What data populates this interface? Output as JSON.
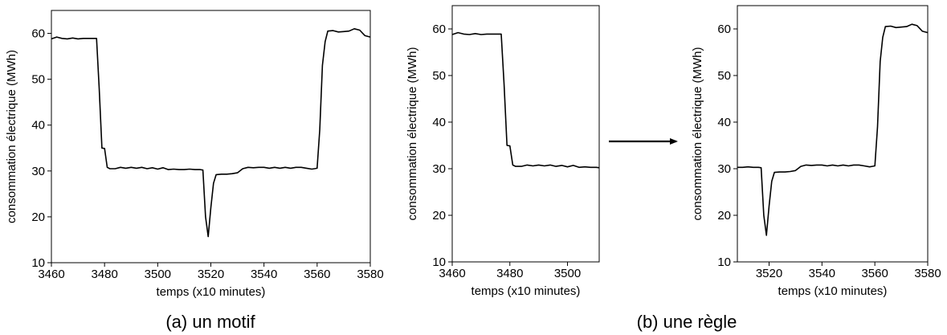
{
  "captions": {
    "a": "(a) un motif",
    "b": "(b) une règle"
  },
  "arrow": {
    "name": "right-arrow-icon"
  },
  "chart_data": [
    {
      "type": "line",
      "xlabel": "temps (x10 minutes)",
      "ylabel": "consommation électrique (MWh)",
      "xlim": [
        3460,
        3580
      ],
      "ylim": [
        10,
        65
      ],
      "xticks": [
        "3460",
        "3480",
        "3500",
        "3520",
        "3540",
        "3560",
        "3580"
      ],
      "yticks": [
        "10",
        "20",
        "30",
        "40",
        "50",
        "60"
      ],
      "grid": false,
      "x": [
        3460,
        3462,
        3464,
        3466,
        3468,
        3470,
        3472,
        3474,
        3476,
        3477,
        3478,
        3479,
        3480,
        3481,
        3482,
        3484,
        3486,
        3488,
        3490,
        3492,
        3494,
        3496,
        3498,
        3500,
        3502,
        3504,
        3506,
        3508,
        3510,
        3512,
        3514,
        3516,
        3517,
        3518,
        3519,
        3520,
        3521,
        3522,
        3524,
        3526,
        3528,
        3530,
        3532,
        3534,
        3536,
        3538,
        3540,
        3542,
        3544,
        3546,
        3548,
        3550,
        3552,
        3554,
        3556,
        3558,
        3559,
        3560,
        3561,
        3562,
        3563,
        3564,
        3566,
        3568,
        3570,
        3572,
        3574,
        3576,
        3578,
        3580
      ],
      "y": [
        58.8,
        59.2,
        58.9,
        58.8,
        59.0,
        58.8,
        58.9,
        58.9,
        58.9,
        58.9,
        48,
        35,
        34.9,
        30.8,
        30.5,
        30.5,
        30.8,
        30.6,
        30.8,
        30.6,
        30.8,
        30.5,
        30.7,
        30.4,
        30.7,
        30.3,
        30.4,
        30.3,
        30.3,
        30.4,
        30.3,
        30.3,
        30.2,
        20,
        15.7,
        22,
        27.3,
        29.2,
        29.3,
        29.3,
        29.4,
        29.6,
        30.5,
        30.8,
        30.7,
        30.8,
        30.8,
        30.6,
        30.8,
        30.6,
        30.8,
        30.6,
        30.8,
        30.8,
        30.6,
        30.4,
        30.5,
        30.6,
        39,
        53,
        58.2,
        60.5,
        60.6,
        60.3,
        60.4,
        60.5,
        61.0,
        60.7,
        59.5,
        59.2
      ]
    },
    {
      "type": "line",
      "xlabel": "temps (x10 minutes)",
      "ylabel": "consommation électrique (MWh)",
      "xlim": [
        3460,
        3511
      ],
      "ylim": [
        10,
        65
      ],
      "xticks": [
        "3460",
        "3480",
        "3500"
      ],
      "yticks": [
        "10",
        "20",
        "30",
        "40",
        "50",
        "60"
      ],
      "grid": false,
      "x": [
        3460,
        3462,
        3464,
        3466,
        3468,
        3470,
        3472,
        3474,
        3476,
        3477,
        3478,
        3479,
        3480,
        3481,
        3482,
        3484,
        3486,
        3488,
        3490,
        3492,
        3494,
        3496,
        3498,
        3500,
        3502,
        3504,
        3506,
        3508,
        3510,
        3511
      ],
      "y": [
        58.8,
        59.2,
        58.9,
        58.8,
        59.0,
        58.8,
        58.9,
        58.9,
        58.9,
        58.9,
        48,
        35,
        34.9,
        30.8,
        30.5,
        30.5,
        30.8,
        30.6,
        30.8,
        30.6,
        30.8,
        30.5,
        30.7,
        30.4,
        30.7,
        30.3,
        30.4,
        30.3,
        30.3,
        30.2
      ]
    },
    {
      "type": "line",
      "xlabel": "temps (x10 minutes)",
      "ylabel": "consommation électrique (MWh)",
      "xlim": [
        3508,
        3580
      ],
      "ylim": [
        10,
        65
      ],
      "xticks": [
        "3520",
        "3540",
        "3560",
        "3580"
      ],
      "yticks": [
        "10",
        "20",
        "30",
        "40",
        "50",
        "60"
      ],
      "grid": false,
      "x": [
        3508,
        3510,
        3512,
        3514,
        3516,
        3517,
        3518,
        3519,
        3520,
        3521,
        3522,
        3524,
        3526,
        3528,
        3530,
        3532,
        3534,
        3536,
        3538,
        3540,
        3542,
        3544,
        3546,
        3548,
        3550,
        3552,
        3554,
        3556,
        3558,
        3559,
        3560,
        3561,
        3562,
        3563,
        3564,
        3566,
        3568,
        3570,
        3572,
        3574,
        3576,
        3578,
        3580
      ],
      "y": [
        30.3,
        30.3,
        30.4,
        30.3,
        30.3,
        30.2,
        20,
        15.7,
        22,
        27.3,
        29.2,
        29.3,
        29.3,
        29.4,
        29.6,
        30.5,
        30.8,
        30.7,
        30.8,
        30.8,
        30.6,
        30.8,
        30.6,
        30.8,
        30.6,
        30.8,
        30.8,
        30.6,
        30.4,
        30.5,
        30.6,
        39,
        53,
        58.2,
        60.5,
        60.6,
        60.3,
        60.4,
        60.5,
        61.0,
        60.7,
        59.5,
        59.2
      ]
    }
  ]
}
